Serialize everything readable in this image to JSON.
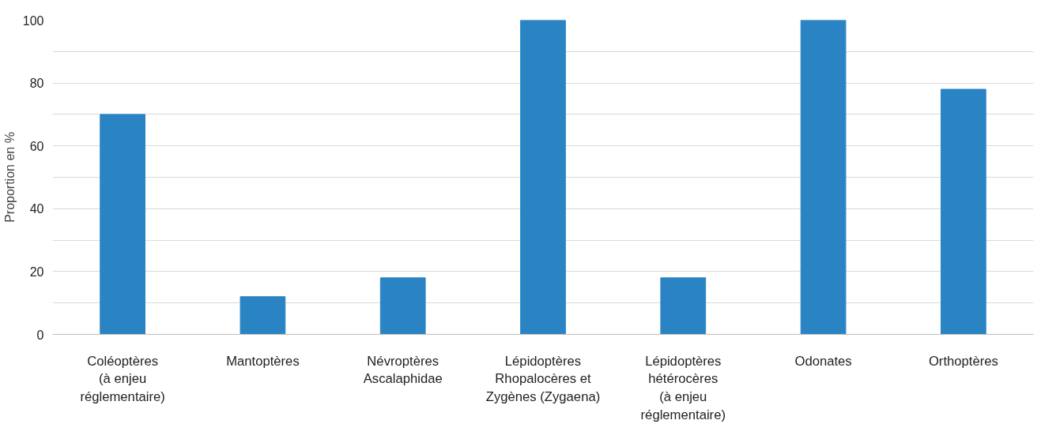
{
  "chart_data": {
    "type": "bar",
    "ylabel": "Proportion en %",
    "categories": [
      "Coléoptères\n(à enjeu\nréglementaire)",
      "Mantoptères",
      "Névroptères\nAscalaphidae",
      "Lépidoptères\nRhopalocères et\nZygènes (Zygaena)",
      "Lépidoptères\nhétérocères\n(à enjeu\nréglementaire)",
      "Odonates",
      "Orthoptères"
    ],
    "values": [
      70,
      12,
      18,
      100,
      18,
      100,
      78
    ],
    "color": "#2a84c4",
    "ylim": [
      0,
      100
    ],
    "yticks": [
      0,
      {
        "value": 10,
        "label": null
      },
      20,
      {
        "value": 30,
        "label": null
      },
      40,
      {
        "value": 50,
        "label": null
      },
      60,
      {
        "value": 70,
        "label": null
      },
      80,
      {
        "value": 90,
        "label": null
      },
      100
    ],
    "grid": "y"
  }
}
